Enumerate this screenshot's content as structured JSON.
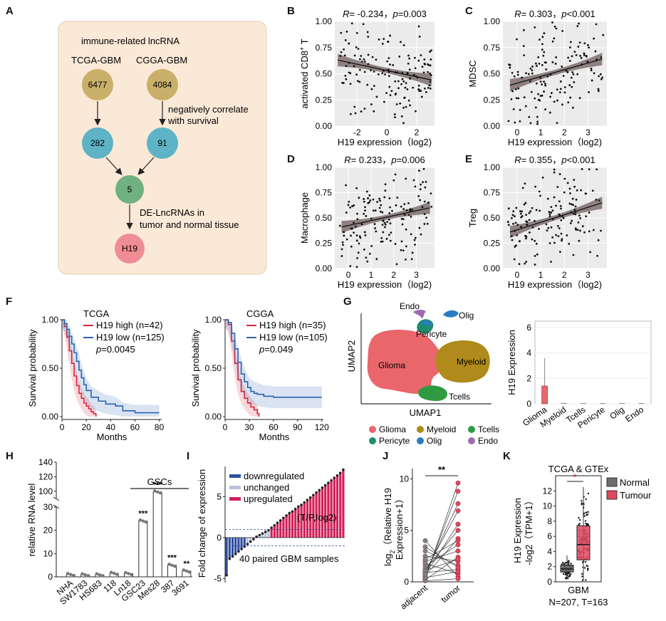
{
  "colors": {
    "lnc_tan": "#c9b06a",
    "lnc_teal": "#5fb3c6",
    "lnc_green": "#6fb27f",
    "lnc_pink": "#ef8d95",
    "panel_a_bg": "#fbe9d7",
    "grey_panel": "#ebebeb",
    "ci_grey": "#7f6f70",
    "high_red": "#d7263d",
    "low_blue": "#2b63b3",
    "glioma": "#e9666b",
    "myeloid": "#b08a1a",
    "tcells": "#2f9a40",
    "pericyte": "#1f8b6f",
    "olig": "#2a7bc2",
    "endo": "#a06ab4",
    "down_blue": "#2f4f9f",
    "unchanged": "#b9c3db",
    "up_red": "#d2225a",
    "tumour": "#e0485e",
    "normal_grey": "#6d6d6d"
  },
  "labels": {
    "A": "A",
    "B": "B",
    "C": "C",
    "D": "D",
    "E": "E",
    "F": "F",
    "G": "G",
    "H": "H",
    "I": "I",
    "J": "J",
    "K": "K"
  },
  "panelA": {
    "title": "immune-related lncRNA",
    "tcga": "TCGA-GBM",
    "cgga": "CGGA-GBM",
    "n_tcga": "6477",
    "n_cgga": "4084",
    "neg_line1": "negatively correlate",
    "neg_line2": "with survival",
    "n_282": "282",
    "n_91": "91",
    "n_5": "5",
    "de_line1": "DE-LncRNAs in",
    "de_line2": "tumor and normal tissue",
    "h19": "H19"
  },
  "scatter": [
    {
      "id": "B",
      "r_label": "R",
      "r_text": "= -0.234，",
      "p_label": "p",
      "p_text": "=0.003",
      "ylabel": "activated CD8",
      "ylabel_sup": "+",
      "ylabel_tail": " T",
      "xlabel": "H19 expression（log2)",
      "xticks": [
        "-2",
        "0",
        "2"
      ],
      "yticks": [
        "0.00",
        "0.25",
        "0.50",
        "0.75",
        "1.00"
      ]
    },
    {
      "id": "C",
      "r_label": "R",
      "r_text": "= 0.303，",
      "p_label": "p",
      "p_text": "<0.001",
      "ylabel": "MDSC",
      "ylabel_sup": "",
      "ylabel_tail": "",
      "xlabel": "H19 expression（log2)",
      "xticks": [
        "0",
        "1",
        "2",
        "3"
      ],
      "yticks": [
        "0.00",
        "0.25",
        "0.50",
        "0.75",
        "1.00"
      ]
    },
    {
      "id": "D",
      "r_label": "R",
      "r_text": "= 0.233，",
      "p_label": "p",
      "p_text": "=0.006",
      "ylabel": "Macrophage",
      "ylabel_sup": "",
      "ylabel_tail": "",
      "xlabel": "H19 expression（log2)",
      "xticks": [
        "0",
        "1",
        "2",
        "3"
      ],
      "yticks": [
        "0.00",
        "0.25",
        "0.50",
        "0.75",
        "1.00"
      ]
    },
    {
      "id": "E",
      "r_label": "R",
      "r_text": "= 0.355，",
      "p_label": "p",
      "p_text": "<0.001",
      "ylabel": "Treg",
      "ylabel_sup": "",
      "ylabel_tail": "",
      "xlabel": "H19 expression（log2)",
      "xticks": [
        "0",
        "1",
        "2",
        "3"
      ],
      "yticks": [
        "0.00",
        "0.25",
        "0.50",
        "0.75",
        "1.00"
      ]
    }
  ],
  "km": [
    {
      "cohort": "TCGA",
      "high": "H19 high (n=42)",
      "low": "H19 low (n=125)",
      "p_label": "p",
      "p_text": "=0.0045",
      "xlabel": "Months",
      "ylabel": "Survival probability",
      "xticks": [
        "0",
        "20",
        "40",
        "60",
        "80"
      ],
      "yticks": [
        "0.00",
        "0.50",
        "1.00"
      ]
    },
    {
      "cohort": "CGGA",
      "high": "H19 high (n=35)",
      "low": "H19 low (n=105)",
      "p_label": "p",
      "p_text": "=0.049",
      "xlabel": "Months",
      "ylabel": "Survival probability",
      "xticks": [
        "0",
        "30",
        "60",
        "90",
        "120"
      ],
      "yticks": [
        "0.00",
        "0.50",
        "1.00"
      ]
    }
  ],
  "umap": {
    "xlabel": "UMAP1",
    "ylabel": "UMAP2",
    "clusters": [
      "Glioma",
      "Myeloid",
      "Tcells",
      "Pericyte",
      "Olig",
      "Endo"
    ],
    "legend_row1": [
      "Glioma",
      "Myeloid",
      "Tcells"
    ],
    "legend_row2": [
      "Pericyte",
      "Olig",
      "Endo"
    ]
  },
  "panelH": {
    "ylabel": "relative RNA level",
    "gscs": "GSCs",
    "yticks_lower": [
      "0",
      "10",
      "20",
      "30"
    ],
    "yticks_upper": [
      "100",
      "120",
      "140"
    ],
    "categories": [
      "NHA",
      "SW1783",
      "HS683",
      "118",
      "Ln18",
      "GSC23",
      "Mes28",
      "387",
      "3691"
    ],
    "sig": [
      "",
      "",
      "",
      "",
      "",
      "***",
      "***",
      "***",
      "**"
    ]
  },
  "panelI": {
    "ylabel": "Fold change of expression",
    "legend": [
      "downregulated",
      "unchanged",
      "upregulated"
    ],
    "axis_note": "(T/P,log2)",
    "footnote": "40 paired GBM samples",
    "yticks": [
      "-5",
      "0",
      "5"
    ]
  },
  "panelJ": {
    "ylabel_line1": "log",
    "ylabel_sub": "2",
    "ylabel_line1_tail": "（Relative H19",
    "ylabel_line2": "Expression+1）",
    "xcats": [
      "adjacent",
      "tumor"
    ],
    "sig": "**",
    "yticks": [
      "0",
      "5",
      "10"
    ]
  },
  "panelK": {
    "title": "TCGA & GTEx",
    "legend": [
      "Normal",
      "Tumour"
    ],
    "ylabel_line1": "H19 Expression",
    "ylabel_line2": "-log2（TPM+1）",
    "xcat": "GBM",
    "footnote": "N=207, T=163",
    "sig": "*",
    "yticks": [
      "0",
      "2",
      "4",
      "6",
      "8",
      "10",
      "12"
    ]
  },
  "chart_data": [
    {
      "type": "scatter",
      "panel": "B",
      "title": "R= -0.234，p=0.003",
      "xlabel": "H19 expression（log2)",
      "ylabel": "activated CD8+ T",
      "xlim": [
        -3.5,
        3.2
      ],
      "ylim": [
        0,
        1
      ],
      "regression": {
        "x": [
          -3.3,
          3.0
        ],
        "y": [
          0.63,
          0.44
        ]
      }
    },
    {
      "type": "scatter",
      "panel": "C",
      "title": "R= 0.303，p<0.001",
      "xlabel": "H19 expression（log2)",
      "ylabel": "MDSC",
      "xlim": [
        -0.6,
        3.8
      ],
      "ylim": [
        0,
        1
      ],
      "regression": {
        "x": [
          -0.3,
          3.6
        ],
        "y": [
          0.39,
          0.64
        ]
      }
    },
    {
      "type": "scatter",
      "panel": "D",
      "title": "R= 0.233，p=0.006",
      "xlabel": "H19 expression（log2)",
      "ylabel": "Macrophage",
      "xlim": [
        -0.6,
        3.8
      ],
      "ylim": [
        0,
        1
      ],
      "regression": {
        "x": [
          -0.3,
          3.6
        ],
        "y": [
          0.41,
          0.6
        ]
      }
    },
    {
      "type": "scatter",
      "panel": "E",
      "title": "R= 0.355，p<0.001",
      "xlabel": "H19 expression（log2)",
      "ylabel": "Treg",
      "xlim": [
        -0.6,
        3.8
      ],
      "ylim": [
        0,
        1
      ],
      "regression": {
        "x": [
          -0.3,
          3.6
        ],
        "y": [
          0.36,
          0.65
        ]
      }
    },
    {
      "type": "line",
      "panel": "F-TCGA",
      "xlabel": "Months",
      "ylabel": "Survival probability",
      "xlim": [
        0,
        82
      ],
      "ylim": [
        0,
        1
      ],
      "series": [
        {
          "name": "H19 high (n=42)",
          "x": [
            0,
            2,
            4,
            6,
            8,
            10,
            12,
            14,
            16,
            18,
            20,
            22,
            24,
            26,
            28
          ],
          "y": [
            1,
            0.93,
            0.82,
            0.68,
            0.55,
            0.42,
            0.32,
            0.24,
            0.19,
            0.14,
            0.11,
            0.08,
            0.05,
            0.03,
            0.0
          ]
        },
        {
          "name": "H19 low (n=125)",
          "x": [
            0,
            2,
            4,
            6,
            8,
            10,
            12,
            14,
            16,
            18,
            20,
            24,
            30,
            36,
            44,
            50,
            60,
            70,
            80
          ],
          "y": [
            1,
            0.96,
            0.9,
            0.83,
            0.75,
            0.66,
            0.57,
            0.48,
            0.4,
            0.33,
            0.27,
            0.2,
            0.16,
            0.13,
            0.11,
            0.06,
            0.04,
            0.04,
            0.04
          ]
        }
      ]
    },
    {
      "type": "line",
      "panel": "F-CGGA",
      "xlabel": "Months",
      "ylabel": "Survival probability",
      "xlim": [
        0,
        122
      ],
      "ylim": [
        0,
        1
      ],
      "series": [
        {
          "name": "H19 high (n=35)",
          "x": [
            0,
            4,
            8,
            12,
            16,
            20,
            24,
            28,
            32,
            36,
            40,
            42
          ],
          "y": [
            1,
            0.95,
            0.78,
            0.55,
            0.38,
            0.26,
            0.19,
            0.14,
            0.1,
            0.07,
            0.03,
            0.0
          ]
        },
        {
          "name": "H19 low (n=105)",
          "x": [
            0,
            4,
            8,
            12,
            16,
            20,
            24,
            28,
            32,
            36,
            40,
            48,
            60,
            80,
            100,
            120
          ],
          "y": [
            1,
            0.97,
            0.86,
            0.7,
            0.56,
            0.44,
            0.36,
            0.3,
            0.26,
            0.24,
            0.23,
            0.21,
            0.2,
            0.2,
            0.2,
            0.2
          ]
        }
      ]
    },
    {
      "type": "bar",
      "panel": "G-box",
      "title": "H19 Expression",
      "categories": [
        "Glioma",
        "Myeloid",
        "Tcells",
        "Pericyte",
        "Olig",
        "Endo"
      ],
      "values": [
        1.4,
        0.03,
        0.02,
        0.02,
        0.02,
        0.02
      ],
      "ylim": [
        0,
        6.5
      ],
      "whisker_max": [
        3.6,
        0,
        0,
        0,
        0,
        0
      ]
    },
    {
      "type": "bar",
      "panel": "H",
      "ylabel": "relative RNA level",
      "categories": [
        "NHA",
        "SW1783",
        "HS683",
        "118",
        "Ln18",
        "GSC23",
        "Mes28",
        "387",
        "3691"
      ],
      "values": [
        1.0,
        0.9,
        0.9,
        1.5,
        1.4,
        24,
        99,
        5,
        2.5
      ]
    },
    {
      "type": "bar",
      "panel": "I",
      "ylabel": "Fold change of expression",
      "values": [
        -4.6,
        -2.6,
        -2.3,
        -2.0,
        -1.7,
        -1.4,
        -1.1,
        -0.8,
        -0.5,
        -0.2,
        0.1,
        0.3,
        0.5,
        0.7,
        0.9,
        1.2,
        1.5,
        1.8,
        2.1,
        2.4,
        2.7,
        3.0,
        3.2,
        3.5,
        3.8,
        4.0,
        4.3,
        4.6,
        4.9,
        5.2,
        5.5,
        5.8,
        6.1,
        6.4,
        6.7,
        7.0,
        7.3,
        7.6,
        7.9,
        8.3
      ],
      "threshold": 1,
      "ylim": [
        -5.5,
        8.7
      ]
    },
    {
      "type": "scatter",
      "panel": "J",
      "categories": [
        "adjacent",
        "tumor"
      ],
      "ylabel": "log2（Relative H19 Expression+1）",
      "ylim": [
        0,
        11
      ],
      "pairs": [
        [
          0.3,
          9.6
        ],
        [
          0.5,
          8.8
        ],
        [
          0.8,
          7.6
        ],
        [
          1.0,
          6.9
        ],
        [
          1.2,
          5.0
        ],
        [
          0.6,
          4.2
        ],
        [
          1.5,
          3.6
        ],
        [
          2.0,
          3.0
        ],
        [
          0.2,
          2.4
        ],
        [
          2.5,
          2.0
        ],
        [
          3.0,
          1.6
        ],
        [
          0.9,
          1.2
        ],
        [
          1.8,
          0.8
        ],
        [
          4.0,
          0.5
        ],
        [
          0.1,
          0.3
        ],
        [
          0.4,
          1.0
        ],
        [
          1.1,
          2.2
        ],
        [
          2.2,
          4.0
        ],
        [
          0.7,
          5.6
        ],
        [
          3.4,
          1.4
        ]
      ]
    },
    {
      "type": "box",
      "panel": "K",
      "categories": [
        "Normal",
        "Tumour"
      ],
      "ylabel": "H19 Expression -log2（TPM+1）",
      "ylim": [
        0,
        14
      ],
      "boxes": [
        {
          "name": "Normal",
          "q1": 1.3,
          "median": 1.7,
          "q3": 2.2,
          "min": 0.3,
          "max": 3.5
        },
        {
          "name": "Tumour",
          "q1": 2.9,
          "median": 4.9,
          "q3": 7.4,
          "min": 0.2,
          "max": 12.5
        }
      ]
    }
  ]
}
